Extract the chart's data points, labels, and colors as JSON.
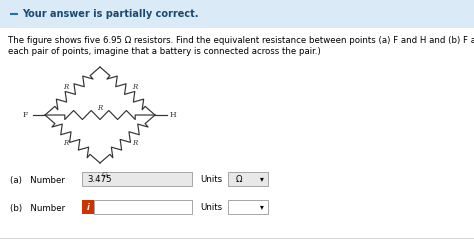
{
  "header_text": "Your answer is partially correct.",
  "header_bg": "#daeaf6",
  "header_dash_color": "#2471a3",
  "body_bg": "#ffffff",
  "problem_line1": "The figure shows five 6.95 Ω resistors. Find the equivalent resistance between points (a) F and H and (b) F and G. (Hint: For",
  "problem_line2": "each pair of points, imagine that a battery is connected across the pair.)",
  "part_a_label": "(a)   Number",
  "part_a_value": "3.475",
  "part_a_units": "Ω",
  "part_b_label": "(b)   Number",
  "part_b_value": "",
  "part_b_units": "",
  "input_a_bg": "#e8e8e8",
  "input_b_icon_bg": "#cc3300",
  "text_color": "#000000",
  "circuit_color": "#333333",
  "label_color": "#333333"
}
